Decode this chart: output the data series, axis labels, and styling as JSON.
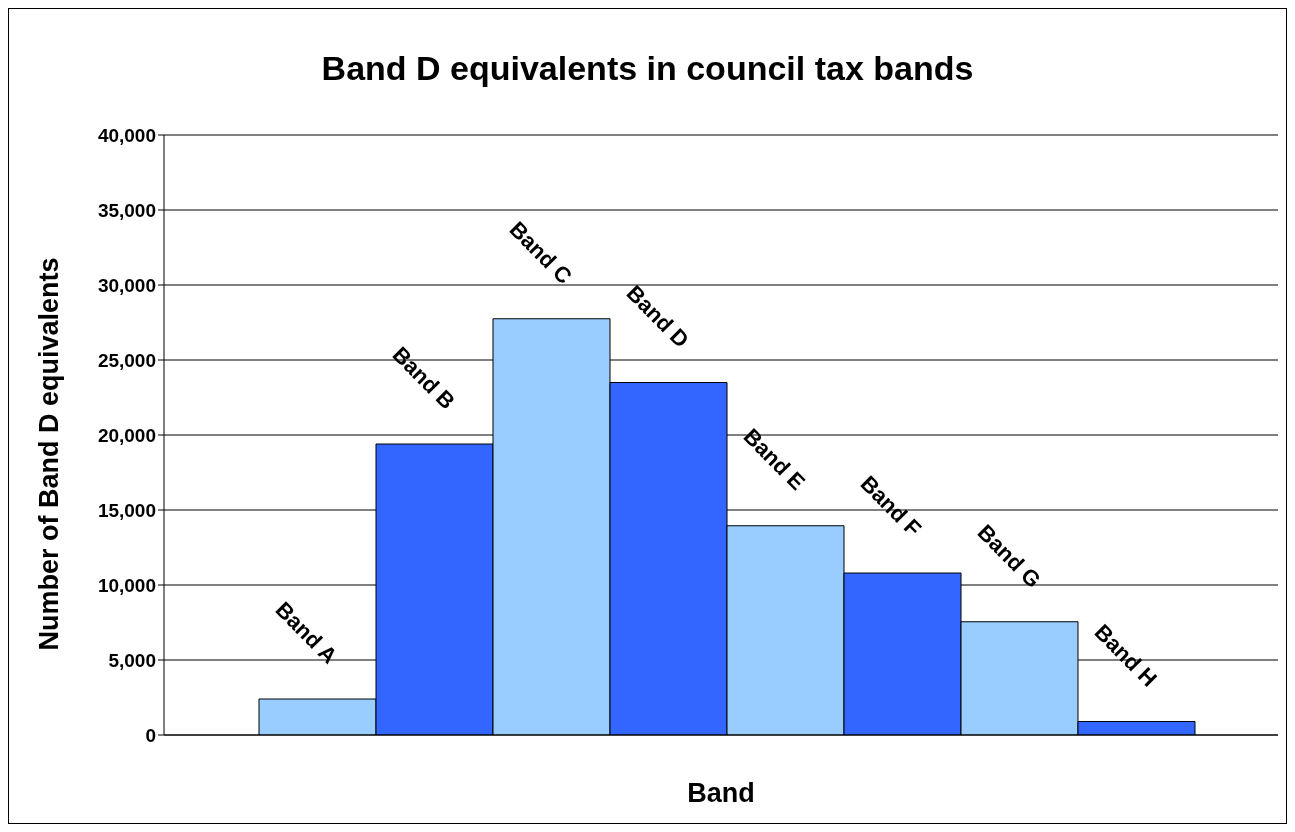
{
  "chart_data": {
    "type": "bar",
    "title": "Band D equivalents in council tax bands",
    "xlabel": "Band",
    "ylabel": "Number of Band D equivalents",
    "categories": [
      "Band A",
      "Band B",
      "Band C",
      "Band D",
      "Band E",
      "Band F",
      "Band G",
      "Band H"
    ],
    "values": [
      2400,
      19400,
      27750,
      23500,
      13950,
      10800,
      7550,
      900
    ],
    "colors": [
      "#99ccff",
      "#3366ff",
      "#99ccff",
      "#3366ff",
      "#99ccff",
      "#3366ff",
      "#99ccff",
      "#3366ff"
    ],
    "ylim": [
      0,
      40000
    ],
    "yticks": [
      0,
      {
        "value": 5000,
        "label": "5,000"
      },
      {
        "value": 10000,
        "label": "10,000"
      },
      {
        "value": 15000,
        "label": "15,000"
      },
      {
        "value": 20000,
        "label": "20,000"
      },
      {
        "value": 25000,
        "label": "25,000"
      },
      {
        "value": 30000,
        "label": "30,000"
      },
      {
        "value": 35000,
        "label": "35,000"
      },
      {
        "value": 40000,
        "label": "40,000"
      }
    ],
    "grid": "y",
    "legend": false,
    "tick_labels": "y"
  }
}
